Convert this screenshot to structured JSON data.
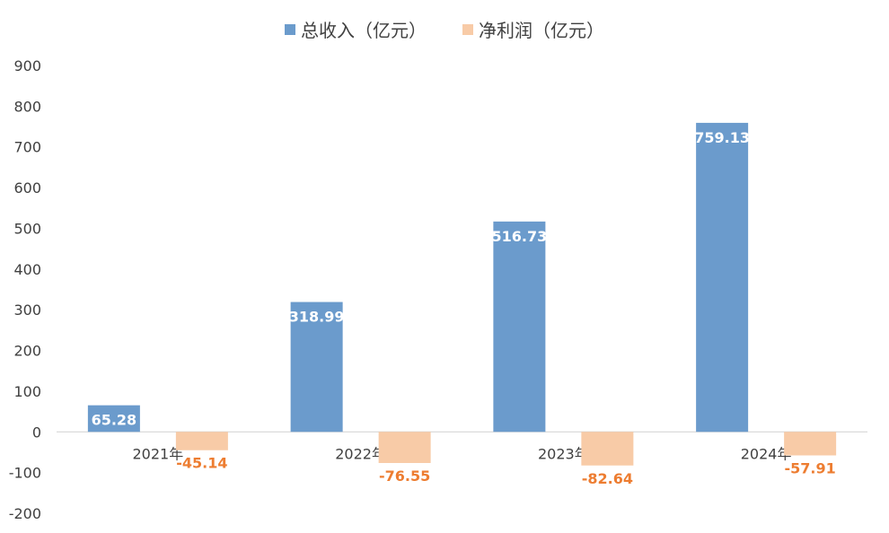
{
  "chart_data": {
    "type": "bar",
    "categories": [
      "2021年",
      "2022年",
      "2023年",
      "2024年"
    ],
    "series": [
      {
        "name": "总收入（亿元）",
        "values": [
          65.28,
          318.99,
          516.73,
          759.13
        ],
        "color": "#6b9bcc",
        "label_color": "#ffffff"
      },
      {
        "name": "净利润（亿元）",
        "values": [
          -45.14,
          -76.55,
          -82.64,
          -57.91
        ],
        "color": "#f8cba7",
        "label_color": "#ed7d31"
      }
    ],
    "ylim": [
      -200,
      900
    ],
    "yticks": [
      900,
      800,
      700,
      600,
      500,
      400,
      300,
      200,
      100,
      0,
      -100,
      -200
    ],
    "grid": false,
    "legend": "top-center"
  }
}
